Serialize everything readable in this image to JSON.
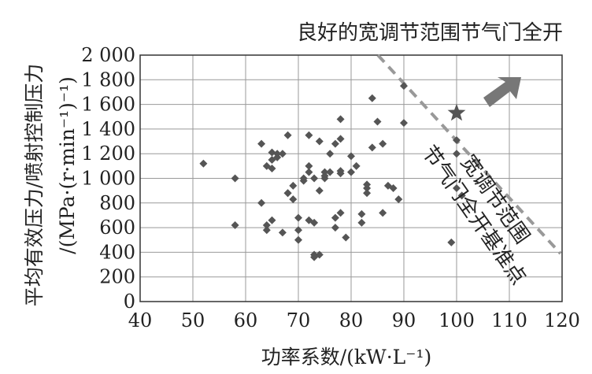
{
  "chart_data": {
    "type": "scatter",
    "title": "良好的宽调节范围节气门全开",
    "xlabel": "功率系数/(kW·L⁻¹)",
    "ylabel": "平均有效压力/喷射控制压力",
    "ylabel_units": "/(MPa·(r·min⁻¹)⁻¹)",
    "xlim": [
      40,
      120
    ],
    "ylim": [
      0,
      2000
    ],
    "xticks": [
      "40",
      "50",
      "60",
      "70",
      "80",
      "90",
      "100",
      "110",
      "120"
    ],
    "yticks": [
      "0",
      "200",
      "400",
      "600",
      "800",
      "1 000",
      "1 200",
      "1 400",
      "1 600",
      "1 800",
      "2 000"
    ],
    "grid": true,
    "annotation": "节气门全开基准点",
    "annotation_alt": "宽调节范围",
    "colors": {
      "points": "#555555",
      "star": "#555555",
      "arrow": "#777777",
      "dashed_line": "#999999",
      "grid": "#999999"
    },
    "series": [
      {
        "x": [
          52,
          58,
          58,
          63,
          63,
          64,
          64,
          64,
          65,
          65,
          65,
          65,
          66,
          66,
          67,
          67,
          68,
          68,
          68,
          69,
          69,
          70,
          70,
          70,
          71,
          71,
          72,
          72,
          72,
          72,
          73,
          73,
          73,
          73,
          74,
          74,
          74,
          75,
          75,
          75,
          76,
          76,
          77,
          77,
          77,
          78,
          78,
          78,
          78,
          78,
          79,
          80,
          80,
          81,
          82,
          82,
          83,
          83,
          83,
          84,
          84,
          85,
          86,
          86,
          87,
          88,
          89,
          90,
          90,
          99,
          100,
          100,
          100,
          101
        ],
        "y": [
          1120,
          1000,
          620,
          1280,
          800,
          580,
          620,
          1100,
          1080,
          1150,
          1210,
          660,
          1200,
          1170,
          560,
          1200,
          880,
          880,
          1350,
          940,
          830,
          500,
          580,
          680,
          1000,
          980,
          1350,
          1100,
          1050,
          660,
          1000,
          640,
          380,
          360,
          380,
          900,
          1300,
          1000,
          1050,
          1020,
          1050,
          1200,
          600,
          680,
          1280,
          1480,
          1320,
          1060,
          1040,
          720,
          520,
          1050,
          1180,
          1100,
          640,
          710,
          950,
          920,
          880,
          1250,
          1650,
          1460,
          1280,
          720,
          940,
          920,
          830,
          1750,
          1450,
          480,
          1310,
          1200,
          920,
          860
        ]
      }
    ],
    "star_point": {
      "x": 100,
      "y": 1530
    }
  }
}
